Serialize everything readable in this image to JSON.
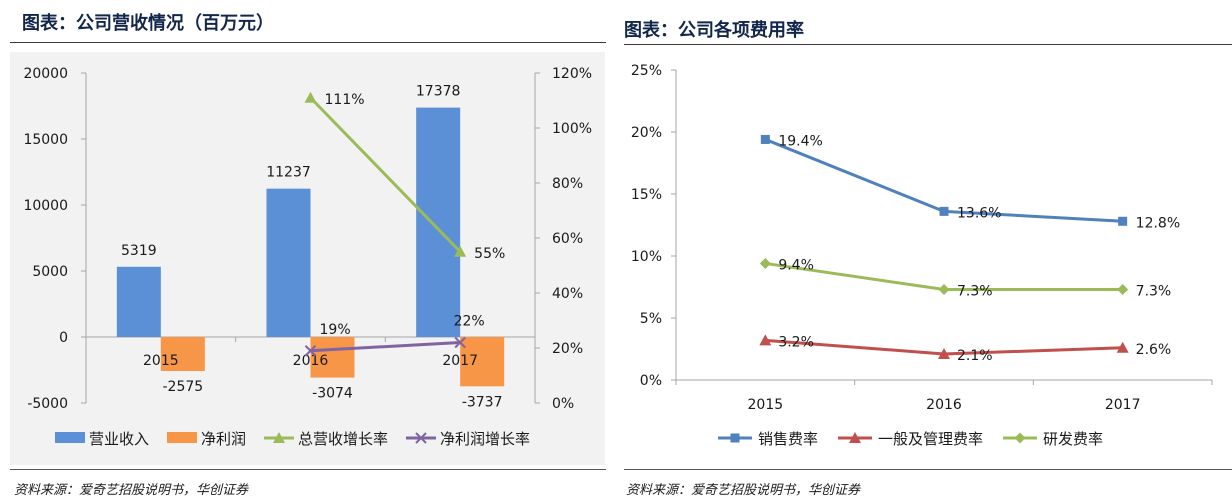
{
  "left_panel": {
    "title": "图表：公司营收情况（百万元）",
    "source": "资料来源：爱奇艺招股说明书，华创证券"
  },
  "right_panel": {
    "title": "图表：公司各项费用率",
    "source": "资料来源：爱奇艺招股说明书，华创证券"
  },
  "chart_data": [
    {
      "type": "bar",
      "categories": [
        "2015",
        "2016",
        "2017"
      ],
      "series": [
        {
          "name": "营业收入",
          "kind": "bar",
          "axis": "left",
          "values": [
            5319,
            11237,
            17378
          ],
          "labels": [
            "5319",
            "11237",
            "17378"
          ],
          "color": "#5b8fd6"
        },
        {
          "name": "净利润",
          "kind": "bar",
          "axis": "left",
          "values": [
            -2575,
            -3074,
            -3737
          ],
          "labels": [
            "-2575",
            "-3074",
            "-3737"
          ],
          "color": "#f79646"
        },
        {
          "name": "总营收增长率",
          "kind": "line",
          "axis": "right",
          "values": [
            null,
            111,
            55
          ],
          "labels": [
            "",
            "111%",
            "55%"
          ],
          "color": "#9bbb59",
          "marker": "triangle"
        },
        {
          "name": "净利润增长率",
          "kind": "line",
          "axis": "right",
          "values": [
            null,
            19,
            22
          ],
          "labels": [
            "",
            "19%",
            "22%"
          ],
          "color": "#8064a2",
          "marker": "x"
        }
      ],
      "y_left": {
        "ylim": [
          -5000,
          20000
        ],
        "ticks": [
          "-5000",
          "0",
          "5000",
          "10000",
          "15000",
          "20000"
        ]
      },
      "y_right": {
        "ylim": [
          0,
          120
        ],
        "ticks": [
          "0%",
          "20%",
          "40%",
          "60%",
          "80%",
          "100%",
          "120%"
        ]
      },
      "grid": false,
      "legend": "bottom"
    },
    {
      "type": "line",
      "categories": [
        "2015",
        "2016",
        "2017"
      ],
      "series": [
        {
          "name": "销售费率",
          "values": [
            19.4,
            13.6,
            12.8
          ],
          "labels": [
            "19.4%",
            "13.6%",
            "12.8%"
          ],
          "color": "#4f81bd",
          "marker": "square"
        },
        {
          "name": "一般及管理费率",
          "values": [
            3.2,
            2.1,
            2.6
          ],
          "labels": [
            "3.2%",
            "2.1%",
            "2.6%"
          ],
          "color": "#c0504d",
          "marker": "triangle"
        },
        {
          "name": "研发费率",
          "values": [
            9.4,
            7.3,
            7.3
          ],
          "labels": [
            "9.4%",
            "7.3%",
            "7.3%"
          ],
          "color": "#9bbb59",
          "marker": "diamond"
        }
      ],
      "ylim": [
        0,
        25
      ],
      "yticks": [
        "0%",
        "5%",
        "10%",
        "15%",
        "20%",
        "25%"
      ],
      "grid": false,
      "legend": "bottom"
    }
  ]
}
